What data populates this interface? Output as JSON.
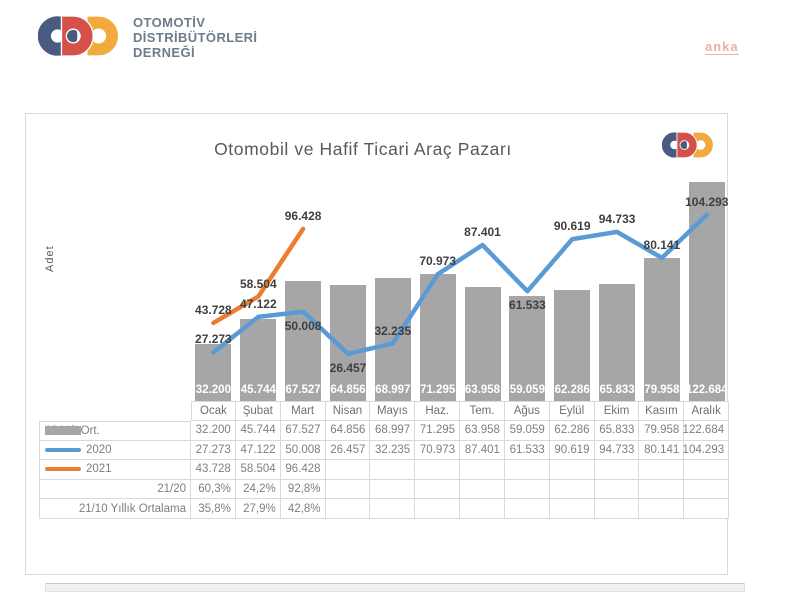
{
  "header": {
    "logo": {
      "line1": "OTOMOTİV",
      "line2": "DİSTRİBÜTÖRLERİ",
      "line3": "DERNEĞİ"
    },
    "watermark": "anka"
  },
  "chart_data": {
    "type": "bar",
    "title": "Otomobil ve Hafif Ticari Araç Pazarı",
    "xlabel": "",
    "ylabel": "Adet",
    "ylim": [
      0,
      130000
    ],
    "grid": false,
    "legend_position": "table-left-below-chart",
    "categories": [
      "Ocak",
      "Şubat",
      "Mart",
      "Nisan",
      "Mayıs",
      "Haz.",
      "Tem.",
      "Ağus",
      "Eylül",
      "Ekim",
      "Kasım",
      "Aralık"
    ],
    "series": [
      {
        "name": "10 Yıl. Ort.",
        "type": "bar",
        "color": "#a6a6a6",
        "values": [
          32200,
          45744,
          67527,
          64856,
          68997,
          71295,
          63958,
          59059,
          62286,
          65833,
          79958,
          122684
        ],
        "labels": [
          "32.200",
          "45.744",
          "67.527",
          "64.856",
          "68.997",
          "71.295",
          "63.958",
          "59.059",
          "62.286",
          "65.833",
          "79.958",
          "122.684"
        ],
        "label_style": "white-inside-bar-base"
      },
      {
        "name": "2020",
        "type": "line",
        "color": "#5b9bd5",
        "values": [
          27273,
          47122,
          50008,
          26457,
          32235,
          70973,
          87401,
          61533,
          90619,
          94733,
          80141,
          104293
        ],
        "labels": [
          "27.273",
          "47.122",
          "50.008",
          "26.457",
          "32.235",
          "70.973",
          "87.401",
          "61.533",
          "90.619",
          "94.733",
          "80.141",
          "104.293"
        ],
        "label_side": [
          "above",
          "above",
          "below",
          "below",
          "above",
          "above",
          "above",
          "below",
          "above",
          "above",
          "above",
          "above"
        ]
      },
      {
        "name": "2021",
        "type": "line",
        "color": "#ed7d31",
        "values": [
          43728,
          58504,
          96428
        ],
        "labels": [
          "43.728",
          "58.504",
          "96.428"
        ],
        "label_side": [
          "above",
          "above",
          "above"
        ]
      }
    ]
  },
  "table": {
    "rows": [
      {
        "label": "10 Yıl. Ort.",
        "swatch": "bar",
        "cells": [
          "32.200",
          "45.744",
          "67.527",
          "64.856",
          "68.997",
          "71.295",
          "63.958",
          "59.059",
          "62.286",
          "65.833",
          "79.958",
          "122.684"
        ]
      },
      {
        "label": "2020",
        "swatch": "line-2020",
        "cells": [
          "27.273",
          "47.122",
          "50.008",
          "26.457",
          "32.235",
          "70.973",
          "87.401",
          "61.533",
          "90.619",
          "94.733",
          "80.141",
          "104.293"
        ]
      },
      {
        "label": "2021",
        "swatch": "line-2021",
        "cells": [
          "43.728",
          "58.504",
          "96.428",
          "",
          "",
          "",
          "",
          "",
          "",
          "",
          "",
          ""
        ]
      },
      {
        "label": "21/20",
        "swatch": "none",
        "cells": [
          "60,3%",
          "24,2%",
          "92,8%",
          "",
          "",
          "",
          "",
          "",
          "",
          "",
          "",
          ""
        ]
      },
      {
        "label": "21/10 Yıllık Ortalama",
        "swatch": "none",
        "cells": [
          "35,8%",
          "27,9%",
          "42,8%",
          "",
          "",
          "",
          "",
          "",
          "",
          "",
          "",
          ""
        ]
      }
    ]
  },
  "colors": {
    "bar": "#a6a6a6",
    "line_2020": "#5b9bd5",
    "line_2021": "#ed7d31",
    "logo_blue": "#4a5b82",
    "logo_red": "#d6504a",
    "logo_orange": "#f2a93e",
    "logo_text": "#6e7b8a",
    "watermark_pink": "#e5a3a3",
    "border": "#d9d9d9",
    "title_gray": "#595959",
    "table_text": "#7f7f7f",
    "label_dark": "#3f3f3f"
  }
}
